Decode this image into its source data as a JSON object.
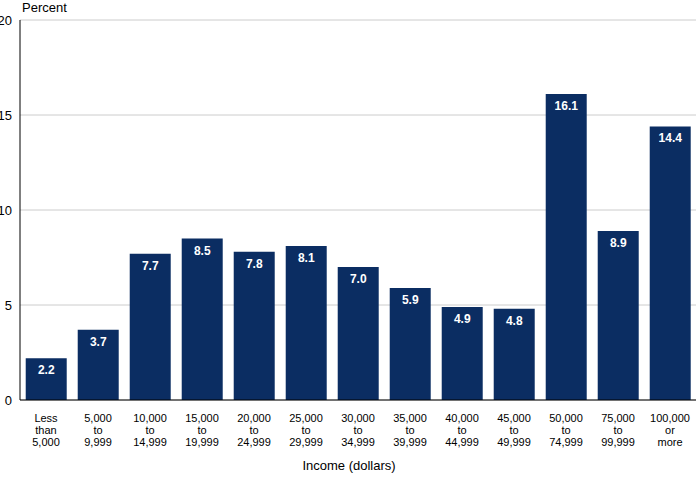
{
  "chart_data": {
    "type": "bar",
    "y_label": "Percent",
    "x_label": "Income (dollars)",
    "categories": [
      "Less than 5,000",
      "5,000 to 9,999",
      "10,000 to 14,999",
      "15,000 to 19,999",
      "20,000 to 24,999",
      "25,000 to 29,999",
      "30,000 to 34,999",
      "35,000 to 39,999",
      "40,000 to 44,999",
      "45,000 to 49,999",
      "50,000 to 74,999",
      "75,000 to 99,999",
      "100,000 or more"
    ],
    "values": [
      2.2,
      3.7,
      7.7,
      8.5,
      7.8,
      8.1,
      7.0,
      5.9,
      4.9,
      4.8,
      16.1,
      8.9,
      14.4
    ],
    "value_labels": [
      "2.2",
      "3.7",
      "7.7",
      "8.5",
      "7.8",
      "8.1",
      "7.0",
      "5.9",
      "4.9",
      "4.8",
      "16.1",
      "8.9",
      "14.4"
    ],
    "data_labels": true,
    "color": "#0b2d62",
    "ylim": [
      0,
      20
    ],
    "yticks": [
      0,
      5,
      10,
      15,
      20
    ],
    "grid": true
  }
}
